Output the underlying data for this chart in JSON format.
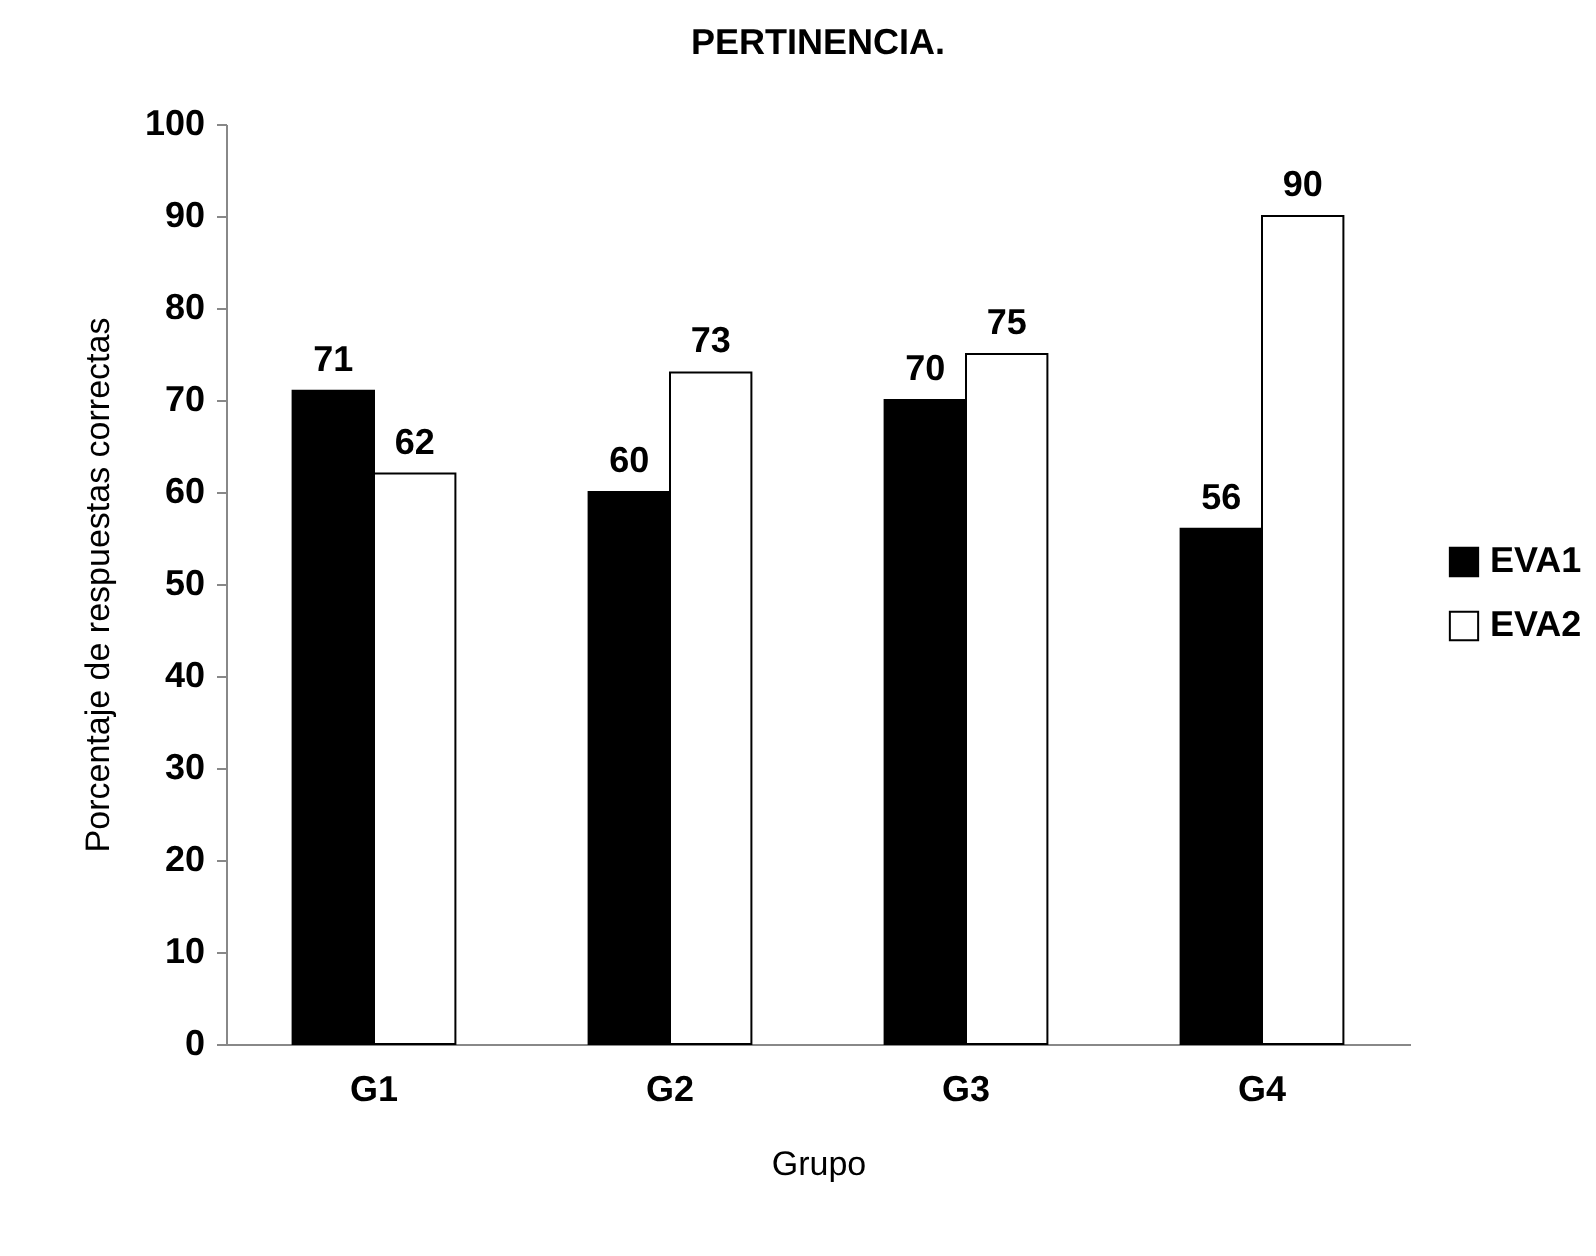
{
  "chart_data": {
    "type": "bar",
    "title": "PERTINENCIA.",
    "xlabel": "Grupo",
    "ylabel": "Porcentaje de respuestas correctas",
    "categories": [
      "G1",
      "G2",
      "G3",
      "G4"
    ],
    "series": [
      {
        "name": "EVA1",
        "color": "#000000",
        "values": [
          71,
          60,
          70,
          56
        ]
      },
      {
        "name": "EVA2",
        "color": "#ffffff",
        "values": [
          62,
          73,
          75,
          90
        ]
      }
    ],
    "ylim": [
      0,
      100
    ],
    "yticks": [
      0,
      10,
      20,
      30,
      40,
      50,
      60,
      70,
      80,
      90,
      100
    ],
    "grid": false,
    "legend": "right",
    "data_labels": true
  }
}
